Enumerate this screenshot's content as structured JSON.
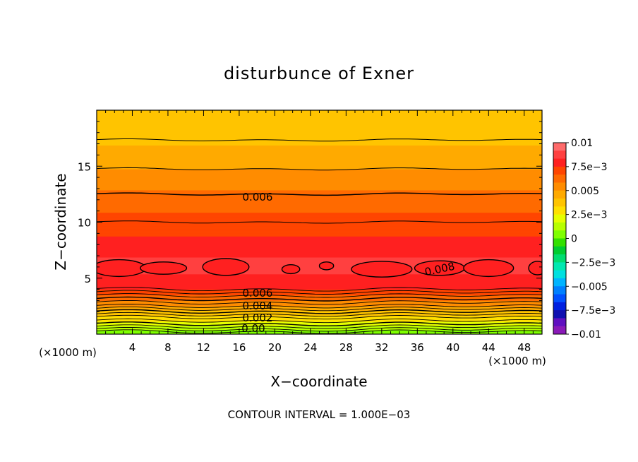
{
  "chart_data": {
    "type": "contour",
    "title": "disturbunce of Exner",
    "xlabel": "X−coordinate",
    "ylabel": "Z−coordinate",
    "x_unit": "(×1000 m)",
    "y_unit": "(×1000 m)",
    "footer": "CONTOUR INTERVAL = 1.000E−03",
    "xlim": [
      0,
      50
    ],
    "ylim": [
      0,
      20
    ],
    "x_ticks": [
      "4",
      "8",
      "12",
      "16",
      "20",
      "24",
      "28",
      "32",
      "36",
      "40",
      "44",
      "48"
    ],
    "y_ticks": [
      "5",
      "10",
      "15"
    ],
    "contour_labels": [
      "0.006",
      "0.008",
      "0.006",
      "0.004",
      "0.002",
      "0.00"
    ],
    "colorbar": {
      "labels": [
        "0.01",
        "7.5e−3",
        "0.005",
        "2.5e−3",
        "0",
        "−2.5e−3",
        "−0.005",
        "−7.5e−3",
        "−0.01"
      ],
      "colors": [
        "#ff6b6b",
        "#ff4040",
        "#ff2020",
        "#ff4500",
        "#ff6a00",
        "#ff8c00",
        "#ffaa00",
        "#ffc400",
        "#ffe000",
        "#e6ff00",
        "#b8ff00",
        "#7fff00",
        "#33e000",
        "#00cc30",
        "#00dd70",
        "#00e8b0",
        "#00e0e0",
        "#00b4ff",
        "#0080ff",
        "#0050ff",
        "#0020e0",
        "#1010b0",
        "#6010c0",
        "#8a1ab8"
      ]
    },
    "profile_z": [
      0.0,
      0.5,
      1.0,
      1.5,
      2.0,
      2.5,
      3.0,
      3.5,
      4.0,
      5.0,
      6.0,
      7.0,
      8.0,
      9.0,
      10.0,
      11.0,
      12.0,
      13.0,
      14.0,
      15.0,
      16.0,
      17.0,
      18.0,
      19.0,
      20.0
    ],
    "profile_value": [
      0.0,
      0.0012,
      0.0022,
      0.003,
      0.004,
      0.005,
      0.0058,
      0.0066,
      0.0075,
      0.0082,
      0.0086,
      0.0083,
      0.0078,
      0.0074,
      0.007,
      0.0066,
      0.0062,
      0.0058,
      0.0053,
      0.0049,
      0.0045,
      0.0041,
      0.0038,
      0.0036,
      0.0034
    ],
    "maxima_cells": [
      {
        "x": 2.5,
        "z": 5.9,
        "value": 0.0082
      },
      {
        "x": 7.5,
        "z": 5.9,
        "value": 0.0082
      },
      {
        "x": 14.5,
        "z": 6.0,
        "value": 0.0081
      },
      {
        "x": 21.8,
        "z": 5.8,
        "value": 0.0081
      },
      {
        "x": 25.8,
        "z": 6.1,
        "value": 0.0081
      },
      {
        "x": 32.0,
        "z": 5.8,
        "value": 0.0082
      },
      {
        "x": 38.5,
        "z": 5.9,
        "value": 0.0082
      },
      {
        "x": 44.0,
        "z": 5.9,
        "value": 0.0082
      },
      {
        "x": 49.5,
        "z": 5.9,
        "value": 0.0081
      }
    ]
  }
}
